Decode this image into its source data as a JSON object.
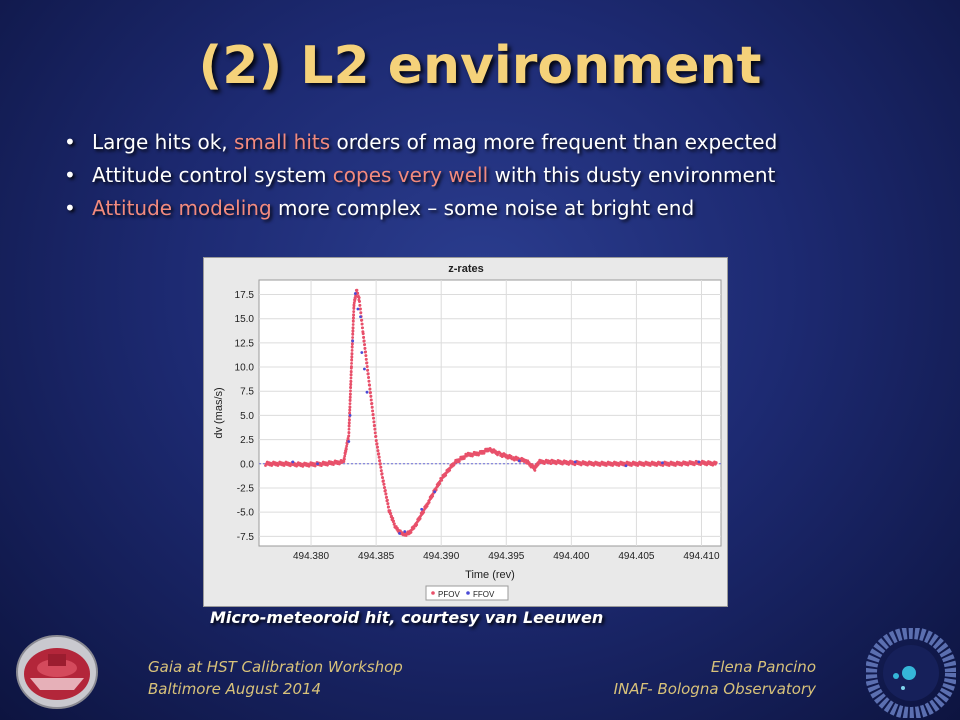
{
  "slide": {
    "title": "(2) L2 environment",
    "bullets": [
      {
        "pre": "Large hits ok, ",
        "hl": "small hits",
        "post": " orders of mag more frequent than expected"
      },
      {
        "pre": "Attitude control system ",
        "hl": "copes very well",
        "post": " with this dusty environment"
      },
      {
        "pre": "",
        "hl": "Attitude modeling",
        "post": " more complex – some noise at bright end"
      }
    ],
    "caption": "Micro-meteoroid hit, courtesy van Leeuwen",
    "footer_left": [
      "Gaia at HST Calibration Workshop",
      "Baltimore August 2014"
    ],
    "footer_right": [
      "Elena Pancino",
      "INAF- Bologna Observatory"
    ],
    "colors": {
      "title": "#f5d27a",
      "highlight": "#f28a7e",
      "footer": "#d8c27a"
    }
  },
  "chart_data": {
    "type": "scatter",
    "title": "z-rates",
    "xlabel": "Time (rev)",
    "ylabel": "dv (mas/s)",
    "xlim": [
      494.376,
      494.4115
    ],
    "ylim": [
      -8.5,
      19
    ],
    "x_ticks": [
      "494.380",
      "494.385",
      "494.390",
      "494.395",
      "494.400",
      "494.405",
      "494.410"
    ],
    "x_tick_values": [
      494.38,
      494.385,
      494.39,
      494.395,
      494.4,
      494.405,
      494.41
    ],
    "y_ticks": [
      "17.5",
      "15.0",
      "12.5",
      "10.0",
      "7.5",
      "5.0",
      "2.5",
      "0.0",
      "-2.5",
      "-5.0",
      "-7.5"
    ],
    "y_tick_values": [
      17.5,
      15,
      12.5,
      10,
      7.5,
      5,
      2.5,
      0,
      -2.5,
      -5,
      -7.5
    ],
    "grid": true,
    "legend_position": "bottom-center",
    "series": [
      {
        "name": "PFOV",
        "color": "#e8506a"
      },
      {
        "name": "FFOV",
        "color": "#4b4bd6"
      }
    ],
    "curve": [
      [
        494.3765,
        0.0
      ],
      [
        494.378,
        0.0
      ],
      [
        494.3795,
        -0.1
      ],
      [
        494.381,
        0.0
      ],
      [
        494.3825,
        0.2
      ],
      [
        494.3829,
        3.0
      ],
      [
        494.3831,
        10.0
      ],
      [
        494.3833,
        16.5
      ],
      [
        494.3835,
        17.9
      ],
      [
        494.3837,
        17.0
      ],
      [
        494.384,
        13.5
      ],
      [
        494.3845,
        8.0
      ],
      [
        494.385,
        2.5
      ],
      [
        494.3855,
        -1.5
      ],
      [
        494.386,
        -4.8
      ],
      [
        494.3865,
        -6.6
      ],
      [
        494.387,
        -7.3
      ],
      [
        494.3875,
        -7.2
      ],
      [
        494.388,
        -6.4
      ],
      [
        494.389,
        -4.0
      ],
      [
        494.39,
        -1.6
      ],
      [
        494.391,
        0.1
      ],
      [
        494.392,
        0.9
      ],
      [
        494.393,
        1.1
      ],
      [
        494.3937,
        1.5
      ],
      [
        494.3945,
        1.0
      ],
      [
        494.3955,
        0.6
      ],
      [
        494.3965,
        0.3
      ],
      [
        494.3972,
        -0.5
      ],
      [
        494.3975,
        0.2
      ],
      [
        494.3985,
        0.2
      ],
      [
        494.4,
        0.1
      ],
      [
        494.402,
        0.0
      ],
      [
        494.404,
        0.0
      ],
      [
        494.406,
        0.0
      ],
      [
        494.408,
        0.0
      ],
      [
        494.41,
        0.1
      ],
      [
        494.4112,
        0.0
      ]
    ],
    "ffov_points": [
      [
        494.3834,
        17.6
      ],
      [
        494.3836,
        16.0
      ],
      [
        494.3838,
        15.2
      ],
      [
        494.3839,
        11.5
      ],
      [
        494.3841,
        9.8
      ],
      [
        494.3843,
        7.4
      ],
      [
        494.3832,
        12.7
      ],
      [
        494.383,
        5.0
      ],
      [
        494.3829,
        2.3
      ],
      [
        494.3868,
        -7.2
      ],
      [
        494.3872,
        -7.0
      ],
      [
        494.3885,
        -4.7
      ],
      [
        494.3895,
        -2.9
      ],
      [
        494.3786,
        0.2
      ],
      [
        494.3805,
        0.0
      ],
      [
        494.396,
        0.3
      ],
      [
        494.4003,
        0.2
      ],
      [
        494.4042,
        -0.2
      ],
      [
        494.407,
        0.1
      ],
      [
        494.4098,
        0.2
      ]
    ]
  }
}
